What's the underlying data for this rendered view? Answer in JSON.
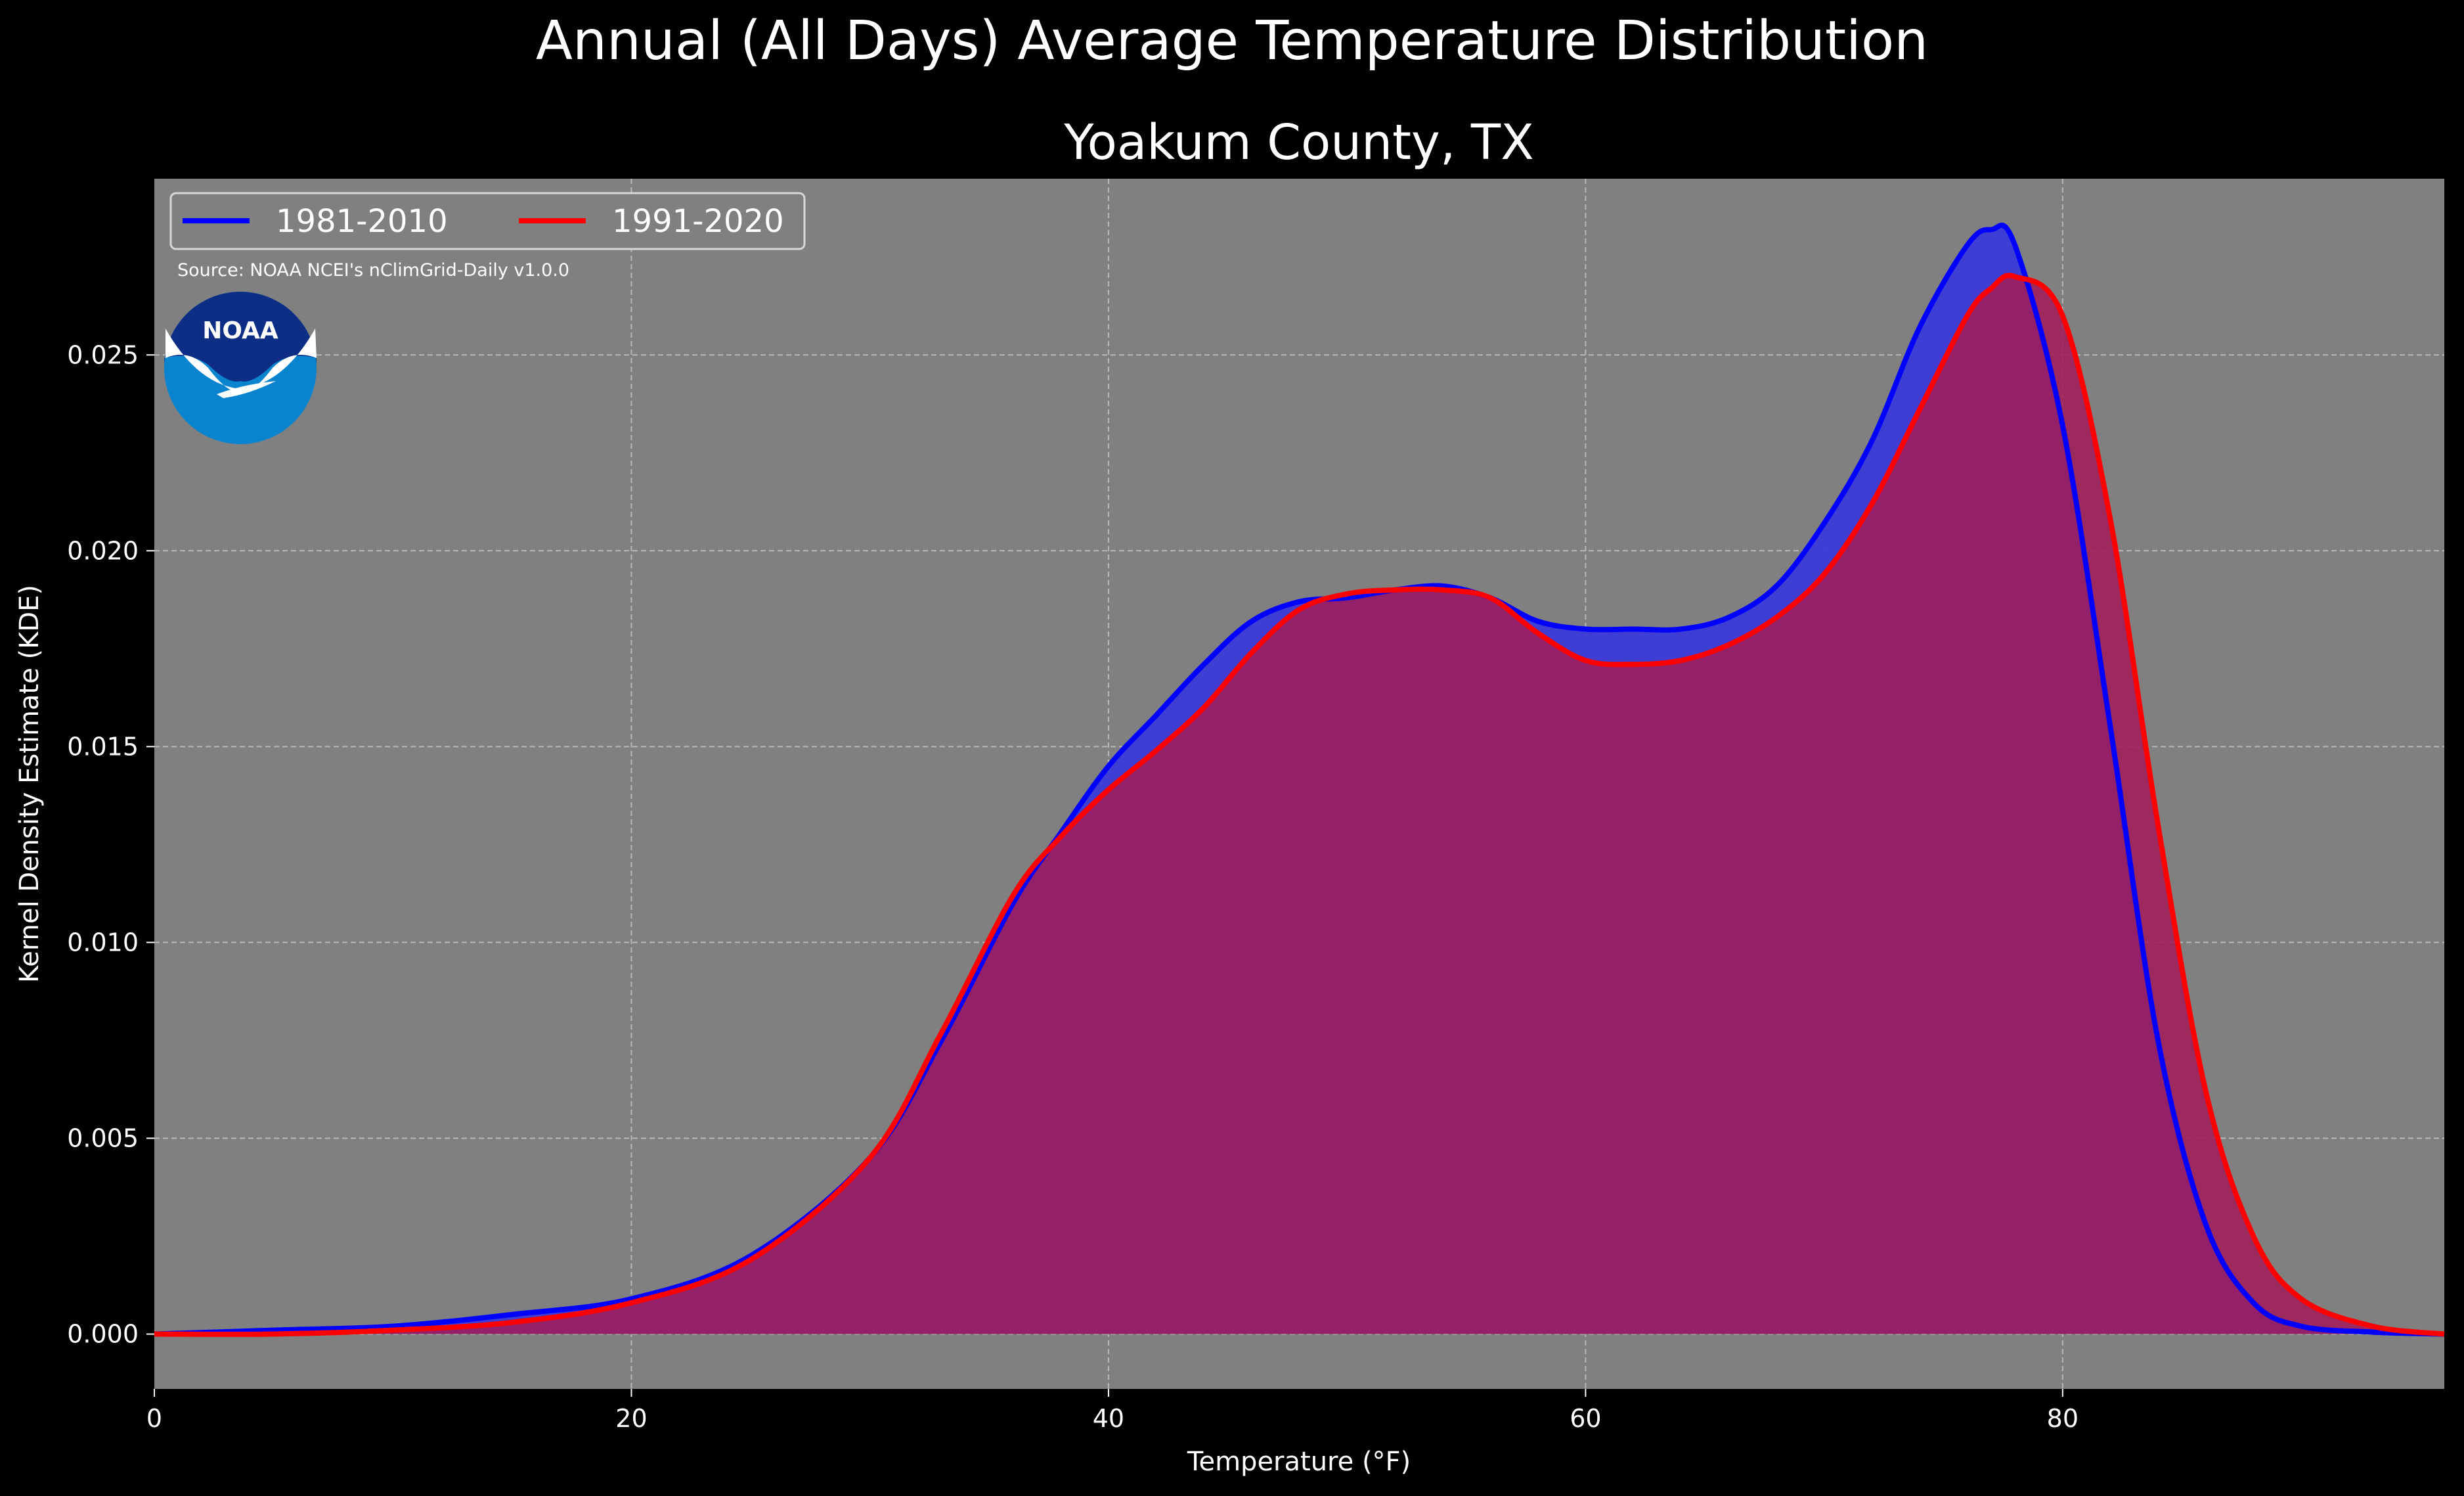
{
  "chart_data": {
    "type": "area",
    "suptitle": "Annual (All Days) Average Temperature Distribution",
    "title": "Yoakum County, TX",
    "xlabel": "Temperature (°F)",
    "ylabel": "Kernel Density Estimate (KDE)",
    "xlim": [
      0,
      96
    ],
    "ylim": [
      -0.0014,
      0.0295
    ],
    "xticks": [
      0,
      20,
      40,
      60,
      80
    ],
    "xtick_labels": [
      "0",
      "20",
      "40",
      "60",
      "80"
    ],
    "yticks": [
      0.0,
      0.005,
      0.01,
      0.015,
      0.02,
      0.025
    ],
    "ytick_labels": [
      "0.000",
      "0.005",
      "0.010",
      "0.015",
      "0.020",
      "0.025"
    ],
    "grid": true,
    "legend_position": "top-left",
    "source": "Source: NOAA NCEI's nClimGrid-Daily v1.0.0",
    "logo_text": "NOAA",
    "series": [
      {
        "name": "1981-2010",
        "color": "#0000ff",
        "fill": "#3a3ad8",
        "x": [
          0,
          5,
          10,
          15,
          20,
          25,
          30,
          33,
          36,
          38,
          40,
          42,
          44,
          46,
          48,
          50,
          52,
          54,
          56,
          58,
          60,
          62,
          64,
          66,
          68,
          70,
          72,
          74,
          76,
          77,
          78,
          80,
          82,
          84,
          86,
          88,
          90,
          93,
          96
        ],
        "y": [
          0.0,
          0.0001,
          0.0002,
          0.0005,
          0.0009,
          0.002,
          0.0045,
          0.0075,
          0.011,
          0.0128,
          0.0145,
          0.0158,
          0.0171,
          0.0182,
          0.0187,
          0.0188,
          0.019,
          0.0191,
          0.0188,
          0.0182,
          0.018,
          0.018,
          0.018,
          0.0183,
          0.0191,
          0.0207,
          0.0228,
          0.0257,
          0.0278,
          0.0282,
          0.0278,
          0.0232,
          0.0155,
          0.0075,
          0.0028,
          0.0008,
          0.0002,
          5e-05,
          0.0
        ]
      },
      {
        "name": "1991-2020",
        "color": "#ff0000",
        "fill": "#a01c5a",
        "x": [
          0,
          5,
          10,
          15,
          20,
          25,
          30,
          33,
          36,
          38,
          40,
          42,
          44,
          46,
          48,
          50,
          52,
          54,
          56,
          58,
          60,
          62,
          64,
          66,
          68,
          70,
          72,
          74,
          76,
          77,
          78,
          80,
          82,
          84,
          86,
          88,
          90,
          93,
          96
        ],
        "y": [
          0.0,
          0.0,
          0.0001,
          0.0003,
          0.0008,
          0.0019,
          0.0045,
          0.0077,
          0.0112,
          0.0127,
          0.0139,
          0.0149,
          0.016,
          0.0174,
          0.0185,
          0.0189,
          0.019,
          0.019,
          0.0188,
          0.0179,
          0.0172,
          0.0171,
          0.0172,
          0.0176,
          0.0183,
          0.0194,
          0.0212,
          0.0236,
          0.026,
          0.0267,
          0.027,
          0.026,
          0.0208,
          0.013,
          0.0062,
          0.0025,
          0.0009,
          0.0002,
          0.0
        ]
      }
    ]
  }
}
